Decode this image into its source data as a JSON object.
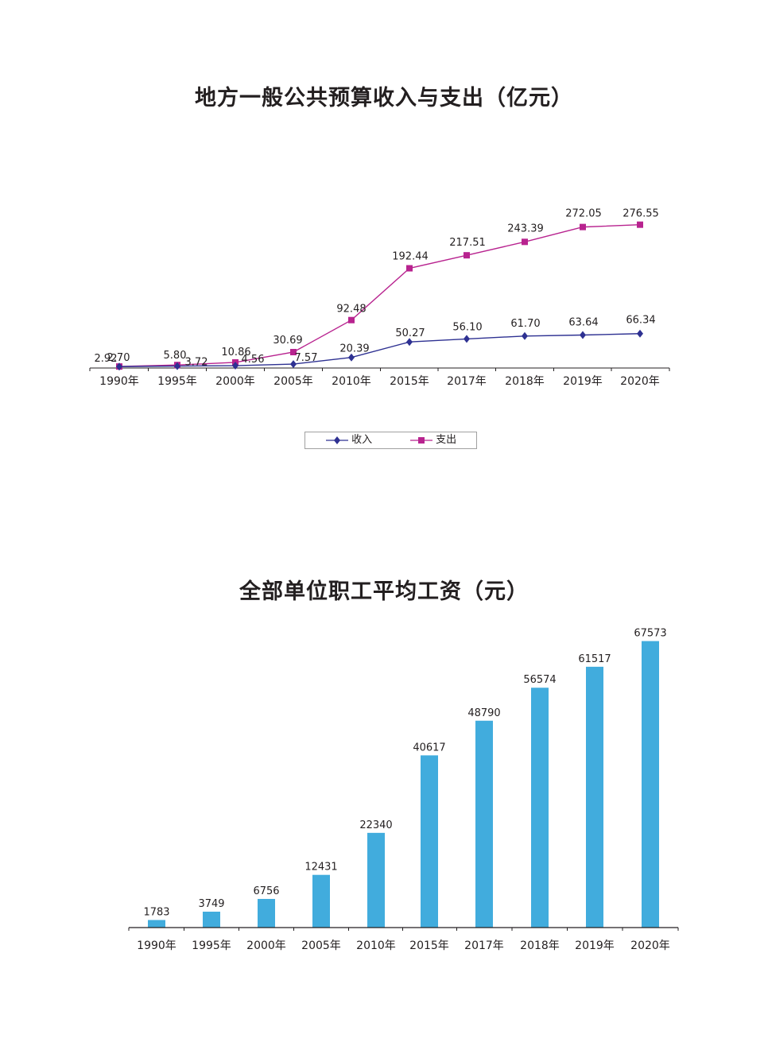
{
  "colors": {
    "income": "#2e3192",
    "expenditure": "#b8238f",
    "bars": "#41acdd",
    "axis": "#231f20"
  },
  "chart_data": [
    {
      "type": "line",
      "title": "地方一般公共预算收入与支出（亿元）",
      "categories": [
        "1990年",
        "1995年",
        "2000年",
        "2005年",
        "2010年",
        "2015年",
        "2017年",
        "2018年",
        "2019年",
        "2020年"
      ],
      "series": [
        {
          "name": "收入",
          "values": [
            2.7,
            3.72,
            4.56,
            7.57,
            20.39,
            50.27,
            56.1,
            61.7,
            63.64,
            66.34
          ],
          "labels": [
            "2.70",
            "3.72",
            "4.56",
            "7.57",
            "20.39",
            "50.27",
            "56.10",
            "61.70",
            "63.64",
            "66.34"
          ],
          "marker": "diamond"
        },
        {
          "name": "支出",
          "values": [
            2.92,
            5.8,
            10.86,
            30.69,
            92.48,
            192.44,
            217.51,
            243.39,
            272.05,
            276.55
          ],
          "labels": [
            "2.92",
            "5.80",
            "10.86",
            "30.69",
            "92.48",
            "192.44",
            "217.51",
            "243.39",
            "272.05",
            "276.55"
          ],
          "marker": "square"
        }
      ],
      "legend": "bottom-center",
      "grid": false
    },
    {
      "type": "bar",
      "title": "全部单位职工平均工资（元）",
      "categories": [
        "1990年",
        "1995年",
        "2000年",
        "2005年",
        "2010年",
        "2015年",
        "2017年",
        "2018年",
        "2019年",
        "2020年"
      ],
      "values": [
        1783,
        3749,
        6756,
        12431,
        22340,
        40617,
        48790,
        56574,
        61517,
        67573
      ],
      "labels": [
        "1783",
        "3749",
        "6756",
        "12431",
        "22340",
        "40617",
        "48790",
        "56574",
        "61517",
        "67573"
      ],
      "grid": false
    }
  ]
}
